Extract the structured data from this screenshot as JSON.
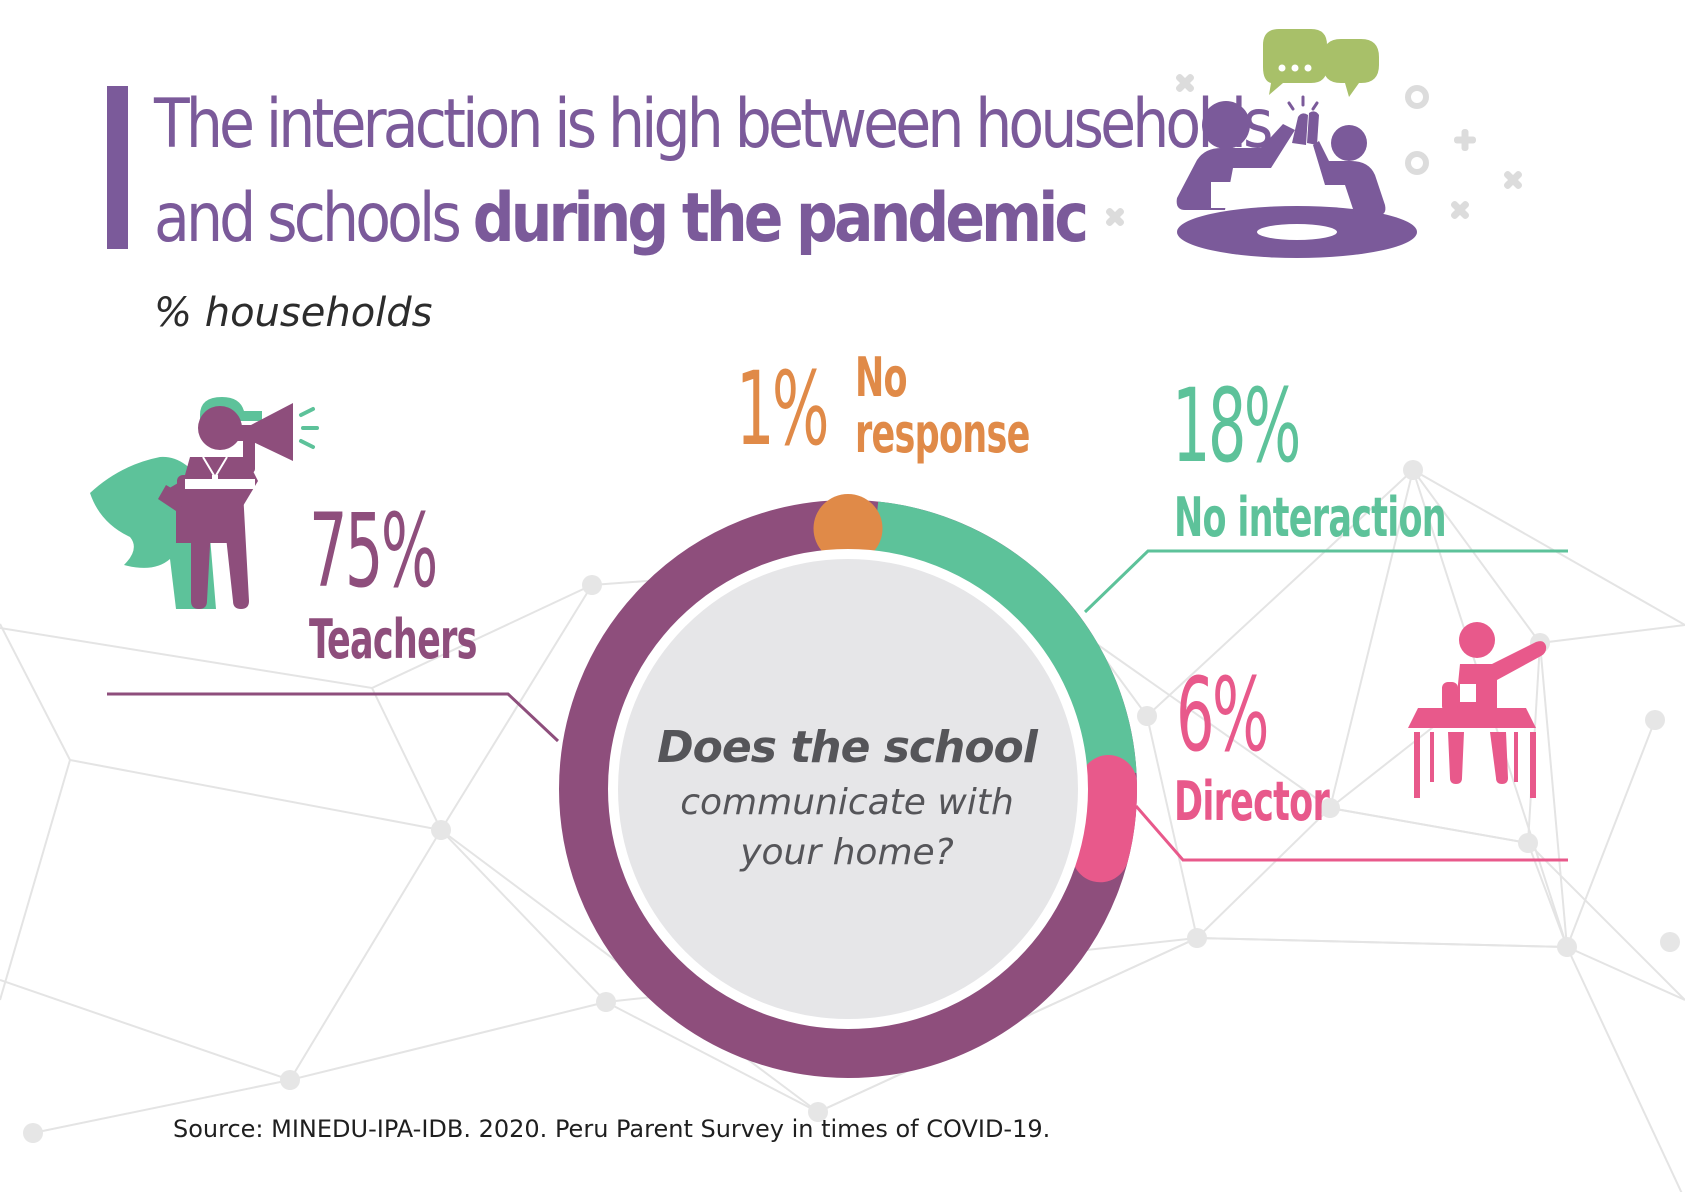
{
  "title": {
    "regular_1": "The interaction is high between households",
    "regular_2": "and schools ",
    "bold": "during the pandemic"
  },
  "subtitle": "% households",
  "center_question": {
    "line1": "Does the school",
    "line2": "communicate with",
    "line3": "your home?"
  },
  "source": "Source: MINEDU-IPA-IDB. 2020. Peru Parent Survey in times of COVID-19.",
  "colors": {
    "title": "#7b5a9a",
    "teachers": "#8e4e7c",
    "no_interaction": "#5dc29a",
    "director": "#e8598b",
    "no_response": "#e08a48",
    "inner_circle": "#e6e6e8",
    "network": "#e2e2e2"
  },
  "icons": {
    "header": "meeting-high-five-icon",
    "teachers": "teacher-megaphone-icon",
    "director": "director-desk-icon"
  },
  "chart_data": {
    "type": "pie",
    "donut": true,
    "categories": [
      "Teachers",
      "No interaction",
      "Director",
      "No response"
    ],
    "values": [
      75,
      18,
      6,
      1
    ],
    "value_labels": [
      "75%",
      "18%",
      "6%",
      "1%"
    ],
    "unit": "%",
    "title": "The interaction is high between households and schools during the pandemic",
    "subtitle": "% households",
    "center_text": "Does the school communicate with your home?",
    "colors": [
      "#8e4e7c",
      "#5dc29a",
      "#e8598b",
      "#e08a48"
    ]
  }
}
